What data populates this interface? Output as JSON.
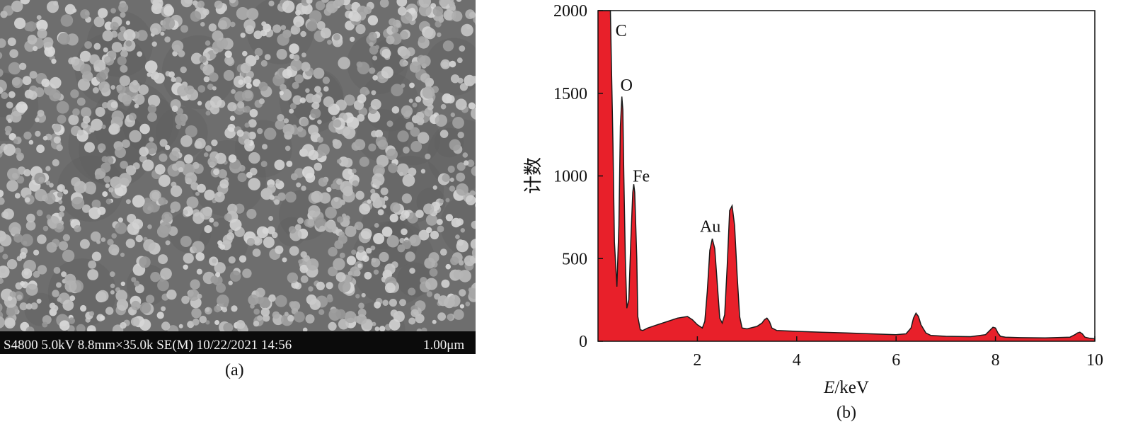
{
  "panel_a": {
    "info_text": "S4800 5.0kV 8.8mm×35.0k SE(M) 10/22/2021 14:56",
    "scale_label": "1.00μm",
    "label": "(a)"
  },
  "panel_b": {
    "label": "(b)"
  },
  "chart_data": {
    "type": "area",
    "title": "",
    "xlabel_italic": "E",
    "xlabel_unit": "/keV",
    "ylabel": "计数",
    "xlim": [
      0,
      10
    ],
    "ylim": [
      0,
      2000
    ],
    "x_ticks": [
      2,
      4,
      6,
      8,
      10
    ],
    "y_ticks": [
      0,
      500,
      1000,
      1500,
      2000
    ],
    "fill_color": "#e8202a",
    "line_color": "#1a1a1a",
    "grid": false,
    "annotations": [
      {
        "text": "C",
        "x": 0.35,
        "y": 1880
      },
      {
        "text": "O",
        "x": 0.45,
        "y": 1550
      },
      {
        "text": "Fe",
        "x": 0.7,
        "y": 1000
      },
      {
        "text": "Au",
        "x": 2.05,
        "y": 695
      }
    ],
    "x": [
      0.0,
      0.2,
      0.25,
      0.3,
      0.33,
      0.38,
      0.42,
      0.45,
      0.48,
      0.5,
      0.52,
      0.55,
      0.58,
      0.62,
      0.66,
      0.7,
      0.72,
      0.74,
      0.78,
      0.8,
      0.85,
      0.9,
      1.0,
      1.2,
      1.4,
      1.6,
      1.8,
      1.9,
      2.0,
      2.1,
      2.15,
      2.2,
      2.25,
      2.3,
      2.35,
      2.4,
      2.45,
      2.5,
      2.55,
      2.6,
      2.65,
      2.7,
      2.75,
      2.8,
      2.85,
      2.9,
      3.0,
      3.2,
      3.3,
      3.35,
      3.4,
      3.45,
      3.5,
      3.6,
      4.0,
      4.5,
      5.0,
      5.5,
      6.0,
      6.2,
      6.3,
      6.35,
      6.4,
      6.45,
      6.5,
      6.6,
      6.7,
      7.0,
      7.5,
      7.8,
      7.9,
      7.95,
      8.0,
      8.05,
      8.1,
      8.2,
      8.5,
      9.0,
      9.5,
      9.6,
      9.65,
      9.7,
      9.75,
      9.8,
      9.9,
      10.0
    ],
    "y": [
      2000,
      2000,
      2000,
      1200,
      600,
      330,
      700,
      1300,
      1480,
      1400,
      1000,
      500,
      200,
      250,
      600,
      900,
      950,
      900,
      500,
      150,
      70,
      65,
      80,
      100,
      120,
      140,
      150,
      130,
      100,
      80,
      120,
      300,
      550,
      620,
      560,
      350,
      140,
      110,
      160,
      450,
      790,
      820,
      700,
      400,
      150,
      80,
      75,
      90,
      110,
      130,
      140,
      120,
      80,
      65,
      60,
      55,
      50,
      45,
      40,
      45,
      80,
      140,
      170,
      150,
      100,
      50,
      35,
      30,
      28,
      40,
      70,
      85,
      80,
      50,
      30,
      25,
      22,
      20,
      25,
      40,
      50,
      55,
      45,
      25,
      18,
      15
    ]
  }
}
